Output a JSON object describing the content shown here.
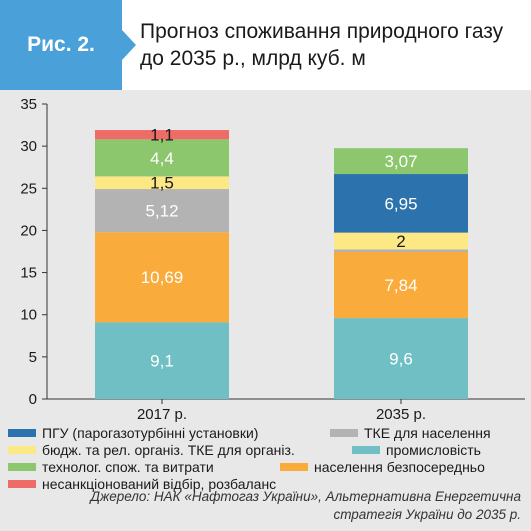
{
  "figure": {
    "label": "Рис. 2.",
    "title": "Прогноз споживання природного газу до 2035 р., млрд куб. м"
  },
  "colors": {
    "badge": "#4aa0d9",
    "background": "#e8e8e8"
  },
  "chart_data": {
    "type": "bar",
    "stacked": true,
    "categories": [
      "2017 р.",
      "2035 р."
    ],
    "ylim": [
      0,
      35
    ],
    "yticks": [
      0,
      5,
      10,
      15,
      20,
      25,
      30,
      35
    ],
    "grid": false,
    "legend_placement": "bottom",
    "series": [
      {
        "name": "промисловість",
        "color": "#6fbfc4",
        "values": [
          9.1,
          9.6
        ],
        "labels": [
          "9,1",
          "9,6"
        ],
        "label_color": "#ffffff"
      },
      {
        "name": "населення безпосередньо",
        "color": "#f9ab3c",
        "values": [
          10.69,
          7.84
        ],
        "labels": [
          "10,69",
          "7,84"
        ],
        "label_color": "#ffffff"
      },
      {
        "name": "ТКЕ для населення",
        "color": "#b3b3b3",
        "values": [
          5.12,
          0.3
        ],
        "labels": [
          "5,12",
          ""
        ],
        "label_color": "#ffffff"
      },
      {
        "name": "бюдж. та рел. організ. ТКЕ для організ.",
        "color": "#fce986",
        "values": [
          1.5,
          2.0
        ],
        "labels": [
          "1,5",
          "2"
        ],
        "label_color": "#1a1a1a"
      },
      {
        "name": "ПГУ (парогазотурбінні установки)",
        "color": "#2c73ad",
        "values": [
          0,
          6.95
        ],
        "labels": [
          "",
          "6,95"
        ],
        "label_color": "#ffffff"
      },
      {
        "name": "технолог. спож. та витрати",
        "color": "#8cc66d",
        "values": [
          4.4,
          3.07
        ],
        "labels": [
          "4,4",
          "3,07"
        ],
        "label_color": "#ffffff"
      },
      {
        "name": "несанкціонований відбір, розбаланс",
        "color": "#ee6c67",
        "values": [
          1.1,
          0
        ],
        "labels": [
          "1,1",
          ""
        ],
        "label_color": "#1a1a1a"
      }
    ]
  },
  "legend": [
    {
      "label": "ПГУ (парогазотурбінні установки)",
      "color": "#2c73ad"
    },
    {
      "label": "ТКЕ для населення",
      "color": "#b3b3b3"
    },
    {
      "label": "бюдж. та рел. організ. ТКЕ для організ.",
      "color": "#fce986"
    },
    {
      "label": "промисловість",
      "color": "#6fbfc4"
    },
    {
      "label": "технолог. спож. та витрати",
      "color": "#8cc66d"
    },
    {
      "label": "населення безпосередньо",
      "color": "#f9ab3c"
    },
    {
      "label": "несанкціонований відбір, розбаланс",
      "color": "#ee6c67"
    }
  ],
  "source": "Джерело: НАК «Нафтогаз України», Альтернативна Енергетична стратегія України до 2035 р."
}
